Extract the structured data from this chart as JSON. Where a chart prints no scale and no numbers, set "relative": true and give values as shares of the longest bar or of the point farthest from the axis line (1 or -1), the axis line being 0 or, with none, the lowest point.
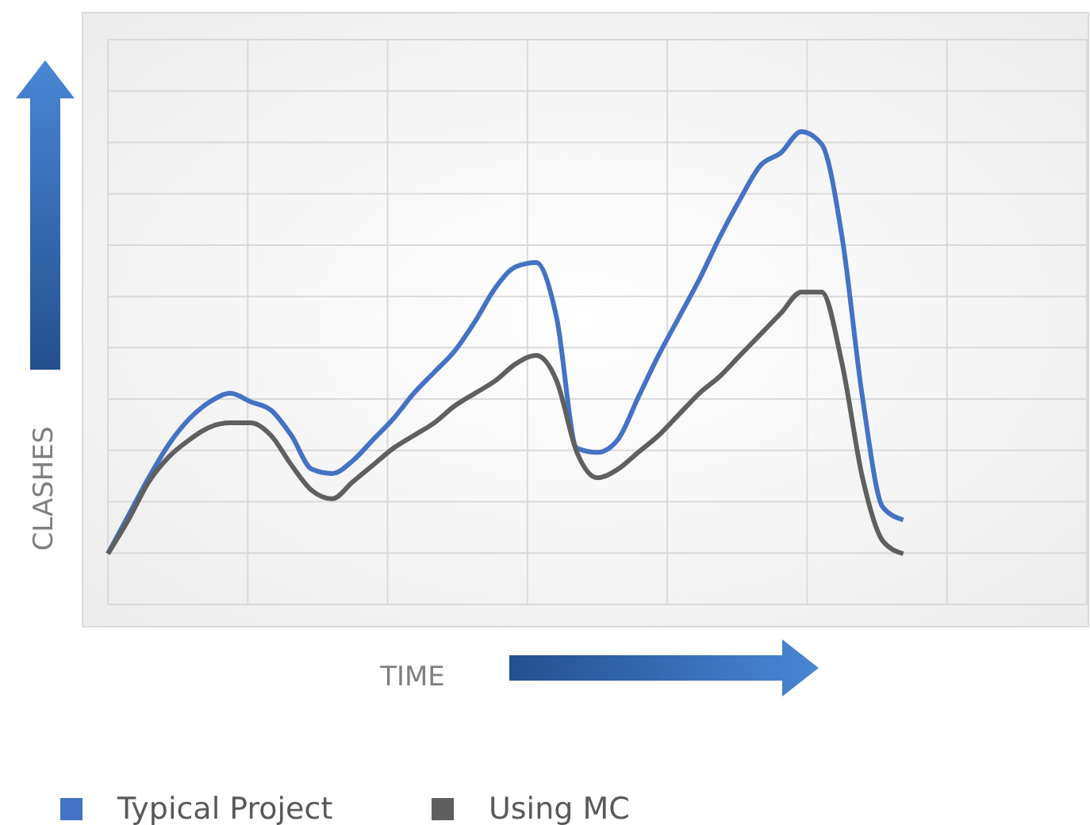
{
  "chart_data": {
    "type": "line",
    "relative": true,
    "xlabel": "TIME",
    "ylabel": "CLASHES",
    "grid": true,
    "legend": "bottom",
    "marker": "none",
    "line_style": "solid",
    "categories": [
      null,
      null,
      null,
      null,
      null,
      null,
      null,
      null,
      null,
      null,
      null,
      null,
      null,
      null,
      null,
      null,
      null,
      null,
      null,
      null,
      null,
      null,
      null,
      null,
      null,
      null,
      null,
      null,
      null,
      null,
      null,
      null,
      null,
      null,
      null,
      null,
      null,
      null,
      null,
      null,
      null,
      null,
      null,
      null,
      null,
      null,
      null,
      null,
      null
    ],
    "series": [
      {
        "name": "Typical Project",
        "color": "#4472c4",
        "values": [
          0,
          0.09,
          0.18,
          0.26,
          0.32,
          0.36,
          0.38,
          0.36,
          0.34,
          0.28,
          0.2,
          0.19,
          0.22,
          0.27,
          0.32,
          0.38,
          0.43,
          0.48,
          0.55,
          0.63,
          0.68,
          0.69,
          0.56,
          0.25,
          0.24,
          0.27,
          0.37,
          0.47,
          0.56,
          0.65,
          0.75,
          0.84,
          0.92,
          0.95,
          1,
          0.97,
          0.75,
          0.37,
          0.11,
          0.08,
          null,
          null,
          null,
          null,
          null,
          null,
          null,
          null,
          null
        ]
      },
      {
        "name": "Using MC",
        "color": "#5f5f5f",
        "values": [
          0,
          0.08,
          0.17,
          0.23,
          0.27,
          0.3,
          0.31,
          0.31,
          0.28,
          0.21,
          0.15,
          0.13,
          0.17,
          0.21,
          0.25,
          0.28,
          0.31,
          0.35,
          0.38,
          0.41,
          0.45,
          0.47,
          0.41,
          0.24,
          0.18,
          0.2,
          0.24,
          0.28,
          0.33,
          0.38,
          0.42,
          0.47,
          0.52,
          0.57,
          0.62,
          0.62,
          0.45,
          0.18,
          0.03,
          0,
          null,
          null,
          null,
          null,
          null,
          null,
          null,
          null,
          null
        ]
      }
    ]
  }
}
